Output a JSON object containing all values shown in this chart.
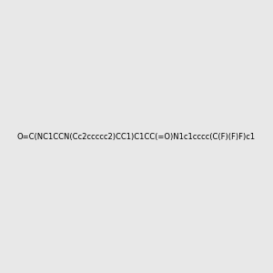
{
  "smiles": "O=C(NC1CCN(Cc2ccccc2)CC1)C1CC(=O)N1c1cccc(C(F)(F)F)c1",
  "image_size": 300,
  "background_color": "#e8e8e8",
  "title": ""
}
